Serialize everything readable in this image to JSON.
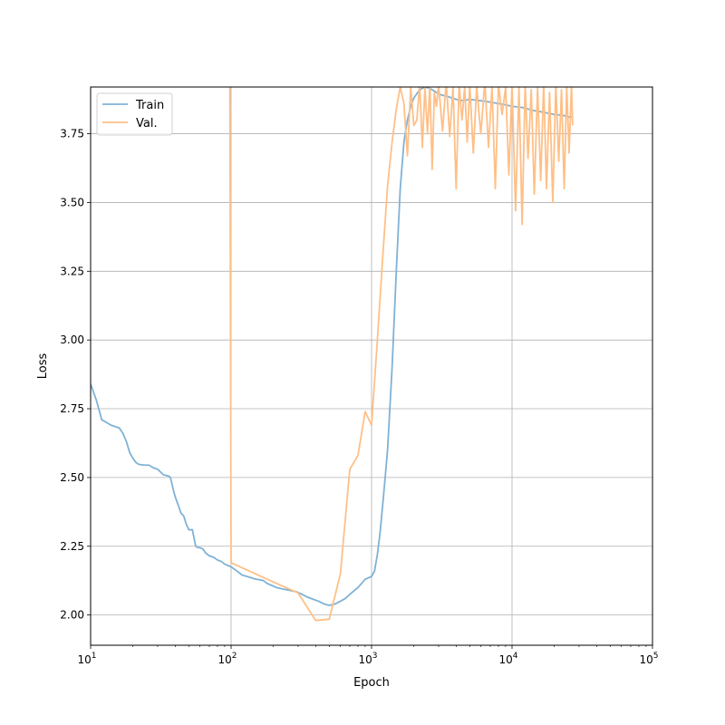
{
  "chart_data": {
    "type": "line",
    "title": "",
    "xlabel": "Epoch",
    "ylabel": "Loss",
    "xscale": "log",
    "xlim": [
      10,
      100000
    ],
    "ylim": [
      1.89,
      3.92
    ],
    "grid": true,
    "legend_position": "top-left",
    "x_ticks": [
      {
        "value": 10,
        "base": "10",
        "exp": "1"
      },
      {
        "value": 100,
        "base": "10",
        "exp": "2"
      },
      {
        "value": 1000,
        "base": "10",
        "exp": "3"
      },
      {
        "value": 10000,
        "base": "10",
        "exp": "4"
      },
      {
        "value": 100000,
        "base": "10",
        "exp": "5"
      }
    ],
    "y_ticks": [
      {
        "value": 2.0,
        "label": "2.00"
      },
      {
        "value": 2.25,
        "label": "2.25"
      },
      {
        "value": 2.5,
        "label": "2.50"
      },
      {
        "value": 2.75,
        "label": "2.75"
      },
      {
        "value": 3.0,
        "label": "3.00"
      },
      {
        "value": 3.25,
        "label": "3.25"
      },
      {
        "value": 3.5,
        "label": "3.50"
      },
      {
        "value": 3.75,
        "label": "3.75"
      }
    ],
    "series": [
      {
        "name": "Train",
        "color": "#7fb2d6",
        "x": [
          10,
          11,
          12,
          13,
          14,
          15,
          16,
          17,
          18,
          19,
          20,
          21,
          22,
          24,
          26,
          28,
          30,
          33,
          36,
          37,
          39,
          40,
          42,
          44,
          46,
          48,
          50,
          53,
          56,
          58,
          60,
          63,
          66,
          70,
          75,
          80,
          85,
          90,
          95,
          100,
          110,
          120,
          130,
          140,
          150,
          160,
          170,
          180,
          190,
          200,
          210,
          230,
          260,
          290,
          320,
          350,
          380,
          420,
          460,
          500,
          550,
          600,
          650,
          700,
          800,
          900,
          1000,
          1050,
          1100,
          1150,
          1200,
          1250,
          1300,
          1400,
          1500,
          1600,
          1700,
          1800,
          1900,
          2000,
          2200,
          2400,
          2600,
          2800,
          3000,
          3200,
          3500,
          4000,
          4500,
          5000,
          6000,
          7000,
          8000,
          9000,
          10000,
          12000,
          14000,
          16000,
          18000,
          20000,
          22000,
          24000,
          26000,
          27000
        ],
        "y": [
          2.84,
          2.78,
          2.71,
          2.7,
          2.69,
          2.685,
          2.68,
          2.66,
          2.63,
          2.59,
          2.57,
          2.555,
          2.548,
          2.545,
          2.545,
          2.535,
          2.53,
          2.51,
          2.505,
          2.5,
          2.45,
          2.43,
          2.4,
          2.37,
          2.36,
          2.33,
          2.31,
          2.31,
          2.25,
          2.245,
          2.245,
          2.24,
          2.225,
          2.215,
          2.21,
          2.2,
          2.195,
          2.185,
          2.18,
          2.175,
          2.16,
          2.145,
          2.14,
          2.135,
          2.13,
          2.128,
          2.125,
          2.115,
          2.11,
          2.105,
          2.1,
          2.095,
          2.09,
          2.085,
          2.075,
          2.065,
          2.058,
          2.05,
          2.04,
          2.035,
          2.04,
          2.05,
          2.06,
          2.075,
          2.1,
          2.13,
          2.14,
          2.16,
          2.22,
          2.3,
          2.4,
          2.5,
          2.6,
          2.9,
          3.25,
          3.55,
          3.72,
          3.8,
          3.85,
          3.88,
          3.91,
          3.92,
          3.915,
          3.905,
          3.895,
          3.89,
          3.885,
          3.875,
          3.87,
          3.875,
          3.87,
          3.865,
          3.86,
          3.855,
          3.85,
          3.845,
          3.835,
          3.83,
          3.825,
          3.82,
          3.818,
          3.815,
          3.81,
          3.81
        ]
      },
      {
        "name": "Val.",
        "color": "#ffbf86",
        "x": [
          88,
          98,
          100,
          200,
          300,
          400,
          500,
          600,
          700,
          800,
          900,
          1000,
          1100,
          1200,
          1300,
          1400,
          1500,
          1600,
          1700,
          1800,
          1900,
          2000,
          2100,
          2200,
          2300,
          2400,
          2500,
          2600,
          2700,
          2800,
          2900,
          3000,
          3200,
          3400,
          3600,
          3800,
          4000,
          4200,
          4400,
          4600,
          4800,
          5000,
          5300,
          5600,
          6000,
          6400,
          6800,
          7200,
          7600,
          8000,
          8500,
          9000,
          9500,
          10000,
          10600,
          11200,
          11800,
          12400,
          13000,
          13700,
          14400,
          15200,
          16000,
          16800,
          17600,
          18500,
          19500,
          20500,
          21500,
          22500,
          23500,
          24500,
          25500,
          26500,
          27000
        ],
        "y": [
          3.95,
          3.93,
          2.19,
          2.12,
          2.08,
          1.98,
          1.985,
          2.15,
          2.53,
          2.58,
          2.74,
          2.69,
          3.0,
          3.3,
          3.56,
          3.72,
          3.84,
          3.92,
          3.86,
          3.67,
          3.92,
          3.78,
          3.8,
          3.93,
          3.7,
          3.92,
          3.75,
          3.93,
          3.62,
          3.9,
          3.85,
          3.93,
          3.76,
          3.94,
          3.74,
          3.92,
          3.55,
          3.93,
          3.8,
          3.92,
          3.72,
          3.93,
          3.68,
          3.92,
          3.75,
          3.94,
          3.7,
          3.92,
          3.55,
          3.93,
          3.82,
          3.92,
          3.6,
          3.93,
          3.47,
          3.92,
          3.42,
          3.93,
          3.66,
          3.91,
          3.53,
          3.92,
          3.58,
          3.93,
          3.55,
          3.9,
          3.5,
          3.93,
          3.65,
          3.91,
          3.55,
          3.92,
          3.68,
          3.93,
          3.78
        ]
      }
    ]
  }
}
